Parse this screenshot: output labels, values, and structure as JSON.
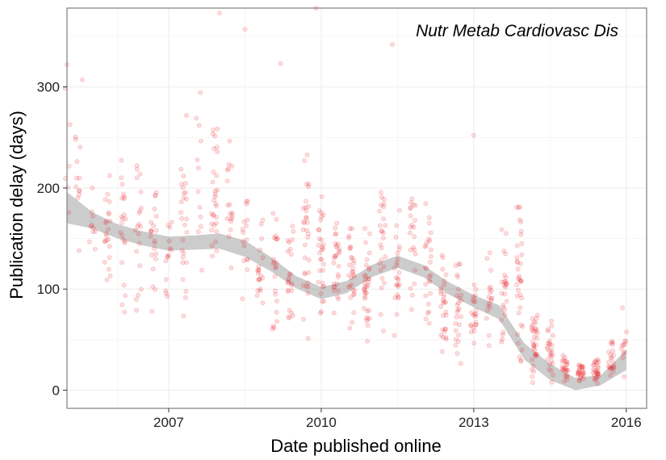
{
  "chart_data": {
    "type": "scatter",
    "title": "",
    "annotation": "Nutr Metab Cardiovasc Dis",
    "xlabel": "Date published online",
    "ylabel": "Publication delay (days)",
    "x_axis": {
      "type": "year",
      "range": [
        2005.0,
        2016.4
      ],
      "ticks": [
        2007,
        2010,
        2013,
        2016
      ]
    },
    "y_axis": {
      "range": [
        -18,
        378
      ],
      "ticks": [
        0,
        100,
        200,
        300
      ]
    },
    "grid": true,
    "legend": "none",
    "colors": {
      "points": "#e8202a",
      "smooth_line": "#3366ff",
      "band": "#999999",
      "panel_border": "#7f7f7f",
      "grid": "#ebebeb"
    },
    "point_alpha": 0.15,
    "smooth": {
      "x": [
        2005.0,
        2005.5,
        2006.0,
        2006.5,
        2007.0,
        2007.5,
        2008.0,
        2008.5,
        2009.0,
        2009.5,
        2010.0,
        2010.5,
        2011.0,
        2011.5,
        2012.0,
        2012.5,
        2013.0,
        2013.5,
        2014.0,
        2014.5,
        2015.0,
        2015.5,
        2016.0
      ],
      "y": [
        180,
        168,
        157,
        150,
        145,
        146,
        148,
        140,
        125,
        107,
        96,
        102,
        118,
        127,
        118,
        101,
        88,
        77,
        38,
        18,
        6,
        10,
        30
      ],
      "lower": [
        165,
        160,
        150,
        143,
        138,
        139,
        140,
        132,
        118,
        101,
        90,
        96,
        112,
        121,
        112,
        95,
        82,
        70,
        30,
        10,
        0,
        5,
        20
      ],
      "upper": [
        196,
        176,
        164,
        157,
        152,
        153,
        155,
        148,
        132,
        113,
        102,
        108,
        124,
        133,
        124,
        107,
        94,
        84,
        46,
        26,
        12,
        15,
        40
      ]
    },
    "clusters": [
      {
        "x": 2005.0,
        "n": 6,
        "y_min": 60,
        "y_max": 360
      },
      {
        "x": 2005.2,
        "n": 12,
        "y_min": 100,
        "y_max": 330
      },
      {
        "x": 2005.5,
        "n": 10,
        "y_min": 110,
        "y_max": 240
      },
      {
        "x": 2005.8,
        "n": 22,
        "y_min": 60,
        "y_max": 230
      },
      {
        "x": 2006.1,
        "n": 22,
        "y_min": 60,
        "y_max": 275
      },
      {
        "x": 2006.4,
        "n": 20,
        "y_min": 55,
        "y_max": 255
      },
      {
        "x": 2006.7,
        "n": 22,
        "y_min": 60,
        "y_max": 230
      },
      {
        "x": 2007.0,
        "n": 14,
        "y_min": 80,
        "y_max": 190
      },
      {
        "x": 2007.3,
        "n": 26,
        "y_min": 60,
        "y_max": 280
      },
      {
        "x": 2007.6,
        "n": 12,
        "y_min": 100,
        "y_max": 330
      },
      {
        "x": 2007.9,
        "n": 30,
        "y_min": 100,
        "y_max": 285
      },
      {
        "x": 2008.2,
        "n": 18,
        "y_min": 95,
        "y_max": 250
      },
      {
        "x": 2008.5,
        "n": 16,
        "y_min": 75,
        "y_max": 220
      },
      {
        "x": 2008.8,
        "n": 20,
        "y_min": 65,
        "y_max": 185
      },
      {
        "x": 2009.1,
        "n": 22,
        "y_min": 55,
        "y_max": 195
      },
      {
        "x": 2009.4,
        "n": 24,
        "y_min": 50,
        "y_max": 175
      },
      {
        "x": 2009.7,
        "n": 32,
        "y_min": 45,
        "y_max": 250
      },
      {
        "x": 2010.0,
        "n": 30,
        "y_min": 60,
        "y_max": 215
      },
      {
        "x": 2010.3,
        "n": 28,
        "y_min": 70,
        "y_max": 175
      },
      {
        "x": 2010.6,
        "n": 30,
        "y_min": 55,
        "y_max": 180
      },
      {
        "x": 2010.9,
        "n": 34,
        "y_min": 35,
        "y_max": 175
      },
      {
        "x": 2011.2,
        "n": 26,
        "y_min": 45,
        "y_max": 225
      },
      {
        "x": 2011.5,
        "n": 24,
        "y_min": 40,
        "y_max": 185
      },
      {
        "x": 2011.8,
        "n": 22,
        "y_min": 70,
        "y_max": 245
      },
      {
        "x": 2012.1,
        "n": 26,
        "y_min": 50,
        "y_max": 200
      },
      {
        "x": 2012.4,
        "n": 28,
        "y_min": 30,
        "y_max": 145
      },
      {
        "x": 2012.7,
        "n": 26,
        "y_min": 20,
        "y_max": 140
      },
      {
        "x": 2013.0,
        "n": 22,
        "y_min": 30,
        "y_max": 110
      },
      {
        "x": 2013.3,
        "n": 18,
        "y_min": 40,
        "y_max": 165
      },
      {
        "x": 2013.6,
        "n": 26,
        "y_min": 30,
        "y_max": 170
      },
      {
        "x": 2013.9,
        "n": 36,
        "y_min": 10,
        "y_max": 205
      },
      {
        "x": 2014.2,
        "n": 34,
        "y_min": 5,
        "y_max": 80
      },
      {
        "x": 2014.5,
        "n": 26,
        "y_min": 5,
        "y_max": 80
      },
      {
        "x": 2014.8,
        "n": 24,
        "y_min": 5,
        "y_max": 35
      },
      {
        "x": 2015.1,
        "n": 26,
        "y_min": 3,
        "y_max": 30
      },
      {
        "x": 2015.4,
        "n": 28,
        "y_min": 3,
        "y_max": 35
      },
      {
        "x": 2015.7,
        "n": 22,
        "y_min": 5,
        "y_max": 50
      },
      {
        "x": 2015.95,
        "n": 12,
        "y_min": 5,
        "y_max": 88
      }
    ],
    "outliers": [
      {
        "x": 2008.0,
        "y": 373
      },
      {
        "x": 2008.5,
        "y": 357
      },
      {
        "x": 2009.9,
        "y": 378
      },
      {
        "x": 2009.2,
        "y": 323
      },
      {
        "x": 2011.4,
        "y": 342
      },
      {
        "x": 2013.0,
        "y": 252
      },
      {
        "x": 2005.3,
        "y": 307
      },
      {
        "x": 2005.0,
        "y": 322
      }
    ]
  }
}
